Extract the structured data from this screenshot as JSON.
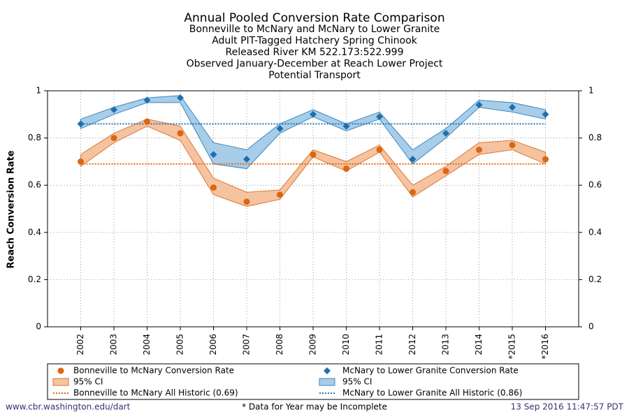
{
  "chart_data": {
    "type": "line",
    "title": "Annual Pooled Conversion Rate Comparison",
    "subtitle": [
      "Bonneville to McNary and McNary to Lower Granite",
      "Adult PIT-Tagged Hatchery Spring Chinook",
      "Released River KM 522.173:522.999",
      "Observed January-December at Reach Lower Project",
      "Potential Transport"
    ],
    "y_label": "Reach Conversion Rate",
    "categories": [
      "2002",
      "2003",
      "2004",
      "2005",
      "2006",
      "2007",
      "2008",
      "2009",
      "2010",
      "2011",
      "2012",
      "2013",
      "2014",
      "*2015",
      "*2016"
    ],
    "series": [
      {
        "name": "Bonneville to McNary Conversion Rate",
        "color": "#dd6611",
        "marker": "circle",
        "values": [
          0.7,
          0.8,
          0.87,
          0.82,
          0.59,
          0.53,
          0.56,
          0.73,
          0.67,
          0.75,
          0.57,
          0.66,
          0.75,
          0.77,
          0.71
        ],
        "ci": {
          "name": "95% CI",
          "color": "#f5c3a0",
          "edge": "#dd7733",
          "lower": [
            0.68,
            0.78,
            0.85,
            0.79,
            0.56,
            0.51,
            0.54,
            0.72,
            0.66,
            0.74,
            0.55,
            0.64,
            0.73,
            0.75,
            0.69
          ],
          "upper": [
            0.73,
            0.82,
            0.88,
            0.85,
            0.63,
            0.57,
            0.58,
            0.75,
            0.7,
            0.77,
            0.6,
            0.68,
            0.78,
            0.79,
            0.74
          ]
        }
      },
      {
        "name": "McNary to Lower Granite Conversion Rate",
        "color": "#1f6fae",
        "marker": "diamond",
        "values": [
          0.86,
          0.92,
          0.96,
          0.97,
          0.73,
          0.71,
          0.84,
          0.9,
          0.85,
          0.89,
          0.71,
          0.82,
          0.94,
          0.93,
          0.9
        ],
        "ci": {
          "name": "95% CI",
          "color": "#a8cde8",
          "edge": "#3a87c0",
          "lower": [
            0.84,
            0.9,
            0.95,
            0.95,
            0.69,
            0.67,
            0.82,
            0.89,
            0.83,
            0.88,
            0.69,
            0.8,
            0.93,
            0.91,
            0.88
          ],
          "upper": [
            0.88,
            0.93,
            0.97,
            0.98,
            0.78,
            0.75,
            0.86,
            0.92,
            0.86,
            0.91,
            0.75,
            0.84,
            0.96,
            0.95,
            0.92
          ]
        }
      }
    ],
    "reference_lines": [
      {
        "name": "Bonneville to McNary All Historic (0.69)",
        "value": 0.69,
        "color": "#dd6611"
      },
      {
        "name": "McNary to Lower Granite All Historic (0.86)",
        "value": 0.86,
        "color": "#1f77b4"
      }
    ],
    "ylim": [
      0,
      1
    ],
    "yticks": [
      0,
      0.2,
      0.4,
      0.6,
      0.8,
      1
    ],
    "y2lim": [
      0,
      1
    ],
    "y2ticks": [
      0,
      0.2,
      0.4,
      0.6,
      0.8,
      1
    ],
    "grid": true
  },
  "footer": {
    "left": "www.cbr.washington.edu/dart",
    "center": "* Data for Year may be Incomplete",
    "right": "13 Sep 2016 11:47:57 PDT"
  }
}
